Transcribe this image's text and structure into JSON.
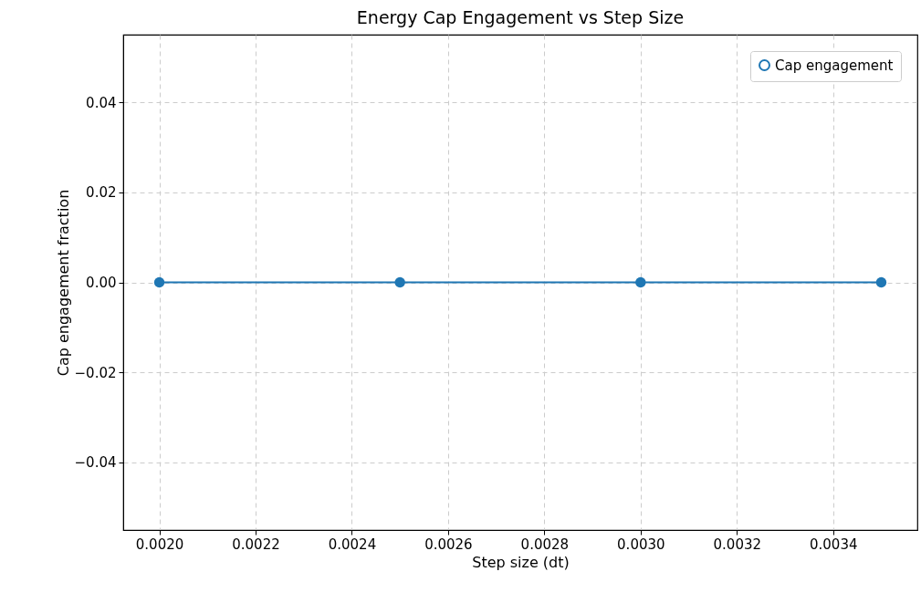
{
  "chart_data": {
    "type": "line",
    "title": "Energy Cap Engagement vs Step Size",
    "xlabel": "Step size (dt)",
    "ylabel": "Cap engagement fraction",
    "x": [
      0.002,
      0.0025,
      0.003,
      0.0035
    ],
    "series": [
      {
        "name": "Cap engagement",
        "color": "#1f77b4",
        "values": [
          0,
          0,
          0,
          0
        ],
        "errors": [
          0,
          0,
          0,
          0
        ]
      }
    ],
    "xlim": [
      0.001925,
      0.003575
    ],
    "xticks": [
      {
        "value": 0.002,
        "label": "0.0020"
      },
      {
        "value": 0.0022,
        "label": "0.0022"
      },
      {
        "value": 0.0024,
        "label": "0.0024"
      },
      {
        "value": 0.0026,
        "label": "0.0026"
      },
      {
        "value": 0.0028,
        "label": "0.0028"
      },
      {
        "value": 0.003,
        "label": "0.0030"
      },
      {
        "value": 0.0032,
        "label": "0.0032"
      },
      {
        "value": 0.0034,
        "label": "0.0034"
      }
    ],
    "ylim": [
      -0.055,
      0.055
    ],
    "yticks": [
      {
        "value": -0.04,
        "label": "−0.04"
      },
      {
        "value": -0.02,
        "label": "−0.02"
      },
      {
        "value": 0,
        "label": "0.00"
      },
      0.02,
      0.04
    ],
    "grid": true,
    "legend": "top right",
    "marker": "circle",
    "line_style": "solid"
  }
}
